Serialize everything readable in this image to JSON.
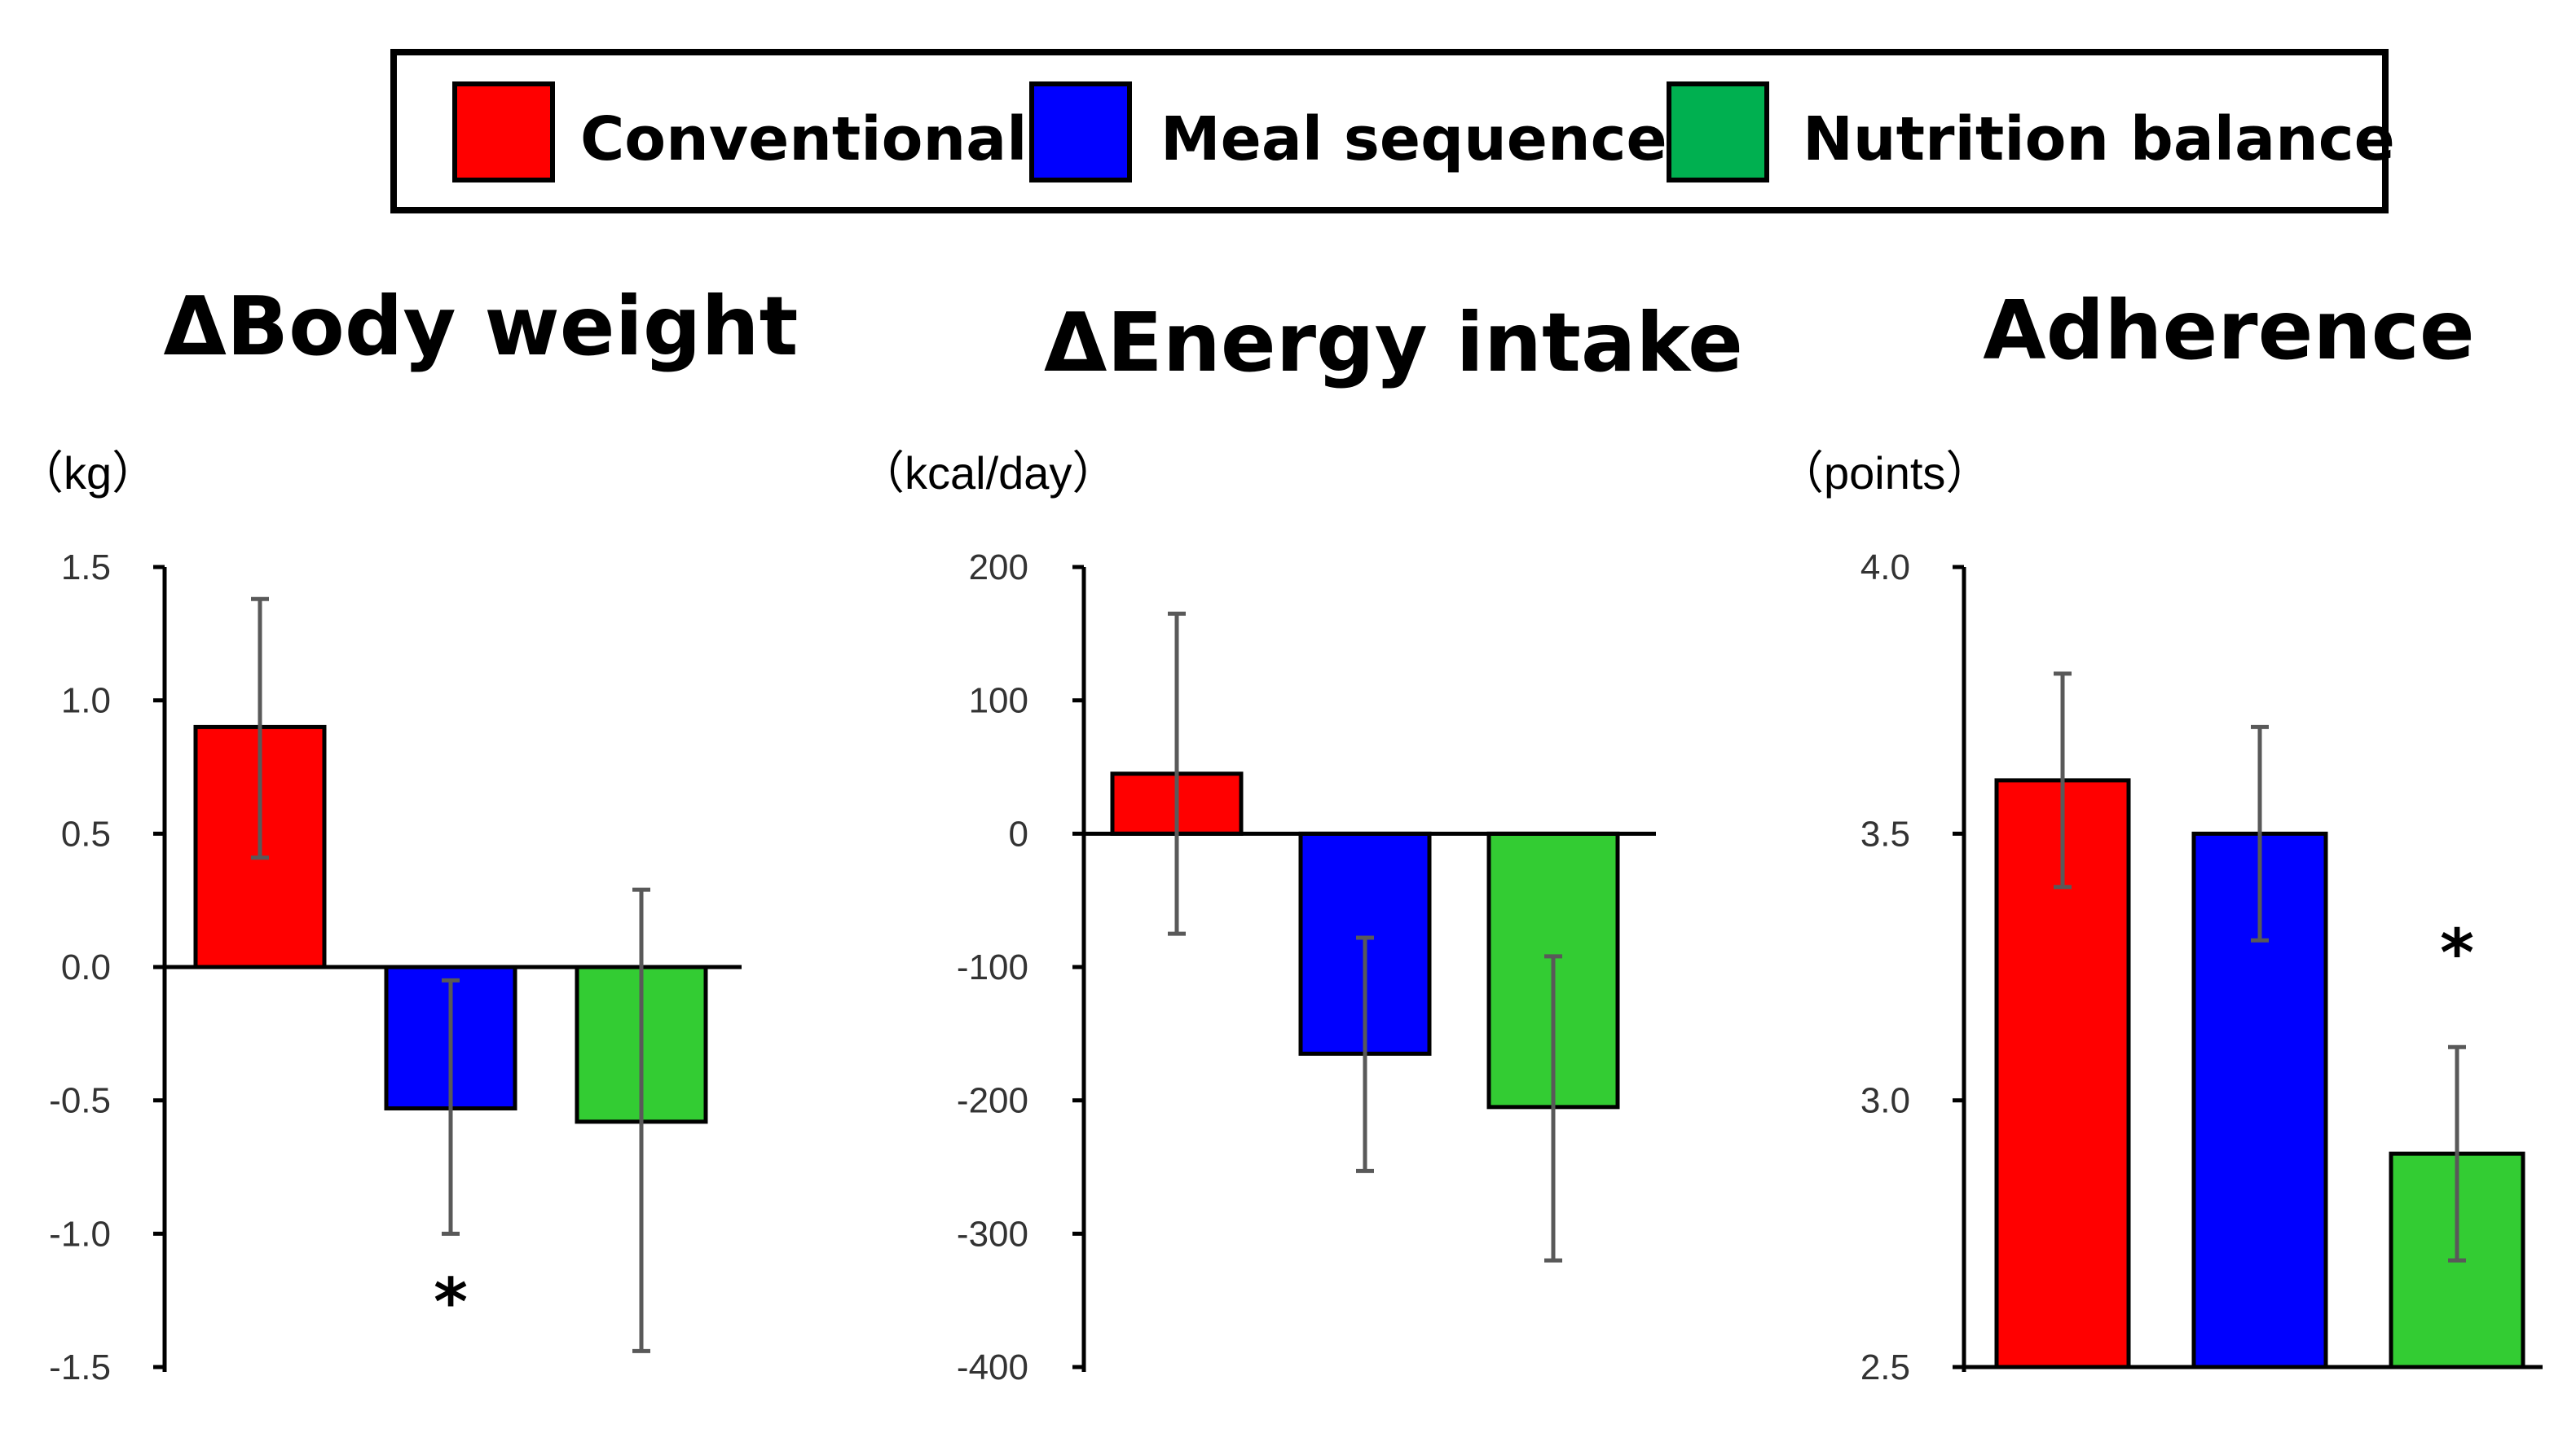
{
  "legend": {
    "items": [
      {
        "label": "Conventional",
        "color": "#ff0000"
      },
      {
        "label": "Meal sequence",
        "color": "#0000ff"
      },
      {
        "label": "Nutrition balance",
        "color": "#00b050"
      }
    ]
  },
  "bar_colors": [
    "#ff0000",
    "#0000ff",
    "#33cc33"
  ],
  "chart_data": [
    {
      "type": "bar",
      "title": "ΔBody weight",
      "ylabel": "（kg）",
      "categories": [
        "Conventional",
        "Meal sequence",
        "Nutrition balance"
      ],
      "values": [
        0.9,
        -0.53,
        -0.58
      ],
      "error_low": [
        0.41,
        -1.0,
        -1.44
      ],
      "error_high": [
        1.38,
        -0.05,
        0.29
      ],
      "ylim": [
        -1.5,
        1.5
      ],
      "yticks": [
        1.5,
        1.0,
        0.5,
        0.0,
        -0.5,
        -1.0,
        -1.5
      ],
      "ytick_labels": [
        "1.5",
        "1.0",
        "0.5",
        "0.0",
        "-0.5",
        "-1.0",
        "-1.5"
      ],
      "baseline": 0,
      "significance": [
        {
          "category": "Meal sequence",
          "mark": "*",
          "position": "below",
          "value": -1.25
        }
      ]
    },
    {
      "type": "bar",
      "title": "ΔEnergy intake",
      "ylabel": "（kcal/day）",
      "categories": [
        "Conventional",
        "Meal sequence",
        "Nutrition balance"
      ],
      "values": [
        45,
        -165,
        -205
      ],
      "error_low": [
        -75,
        -253,
        -320
      ],
      "error_high": [
        165,
        -78,
        -92
      ],
      "ylim": [
        -400,
        200
      ],
      "yticks": [
        200,
        100,
        0,
        -100,
        -200,
        -300,
        -400
      ],
      "ytick_labels": [
        "200",
        "100",
        "0",
        "-100",
        "-200",
        "-300",
        "-400"
      ],
      "baseline": 0,
      "significance": []
    },
    {
      "type": "bar",
      "title": "Adherence",
      "ylabel": "（points）",
      "categories": [
        "Conventional",
        "Meal sequence",
        "Nutrition balance"
      ],
      "values": [
        3.6,
        3.5,
        2.9
      ],
      "error_low": [
        3.4,
        3.3,
        2.7
      ],
      "error_high": [
        3.8,
        3.7,
        3.1
      ],
      "ylim": [
        2.5,
        4.0
      ],
      "yticks": [
        4.0,
        3.5,
        3.0,
        2.5
      ],
      "ytick_labels": [
        "4.0",
        "3.5",
        "3.0",
        "2.5"
      ],
      "baseline": 2.5,
      "significance": [
        {
          "category": "Nutrition balance",
          "mark": "*",
          "position": "above",
          "value": 3.28
        }
      ]
    }
  ]
}
